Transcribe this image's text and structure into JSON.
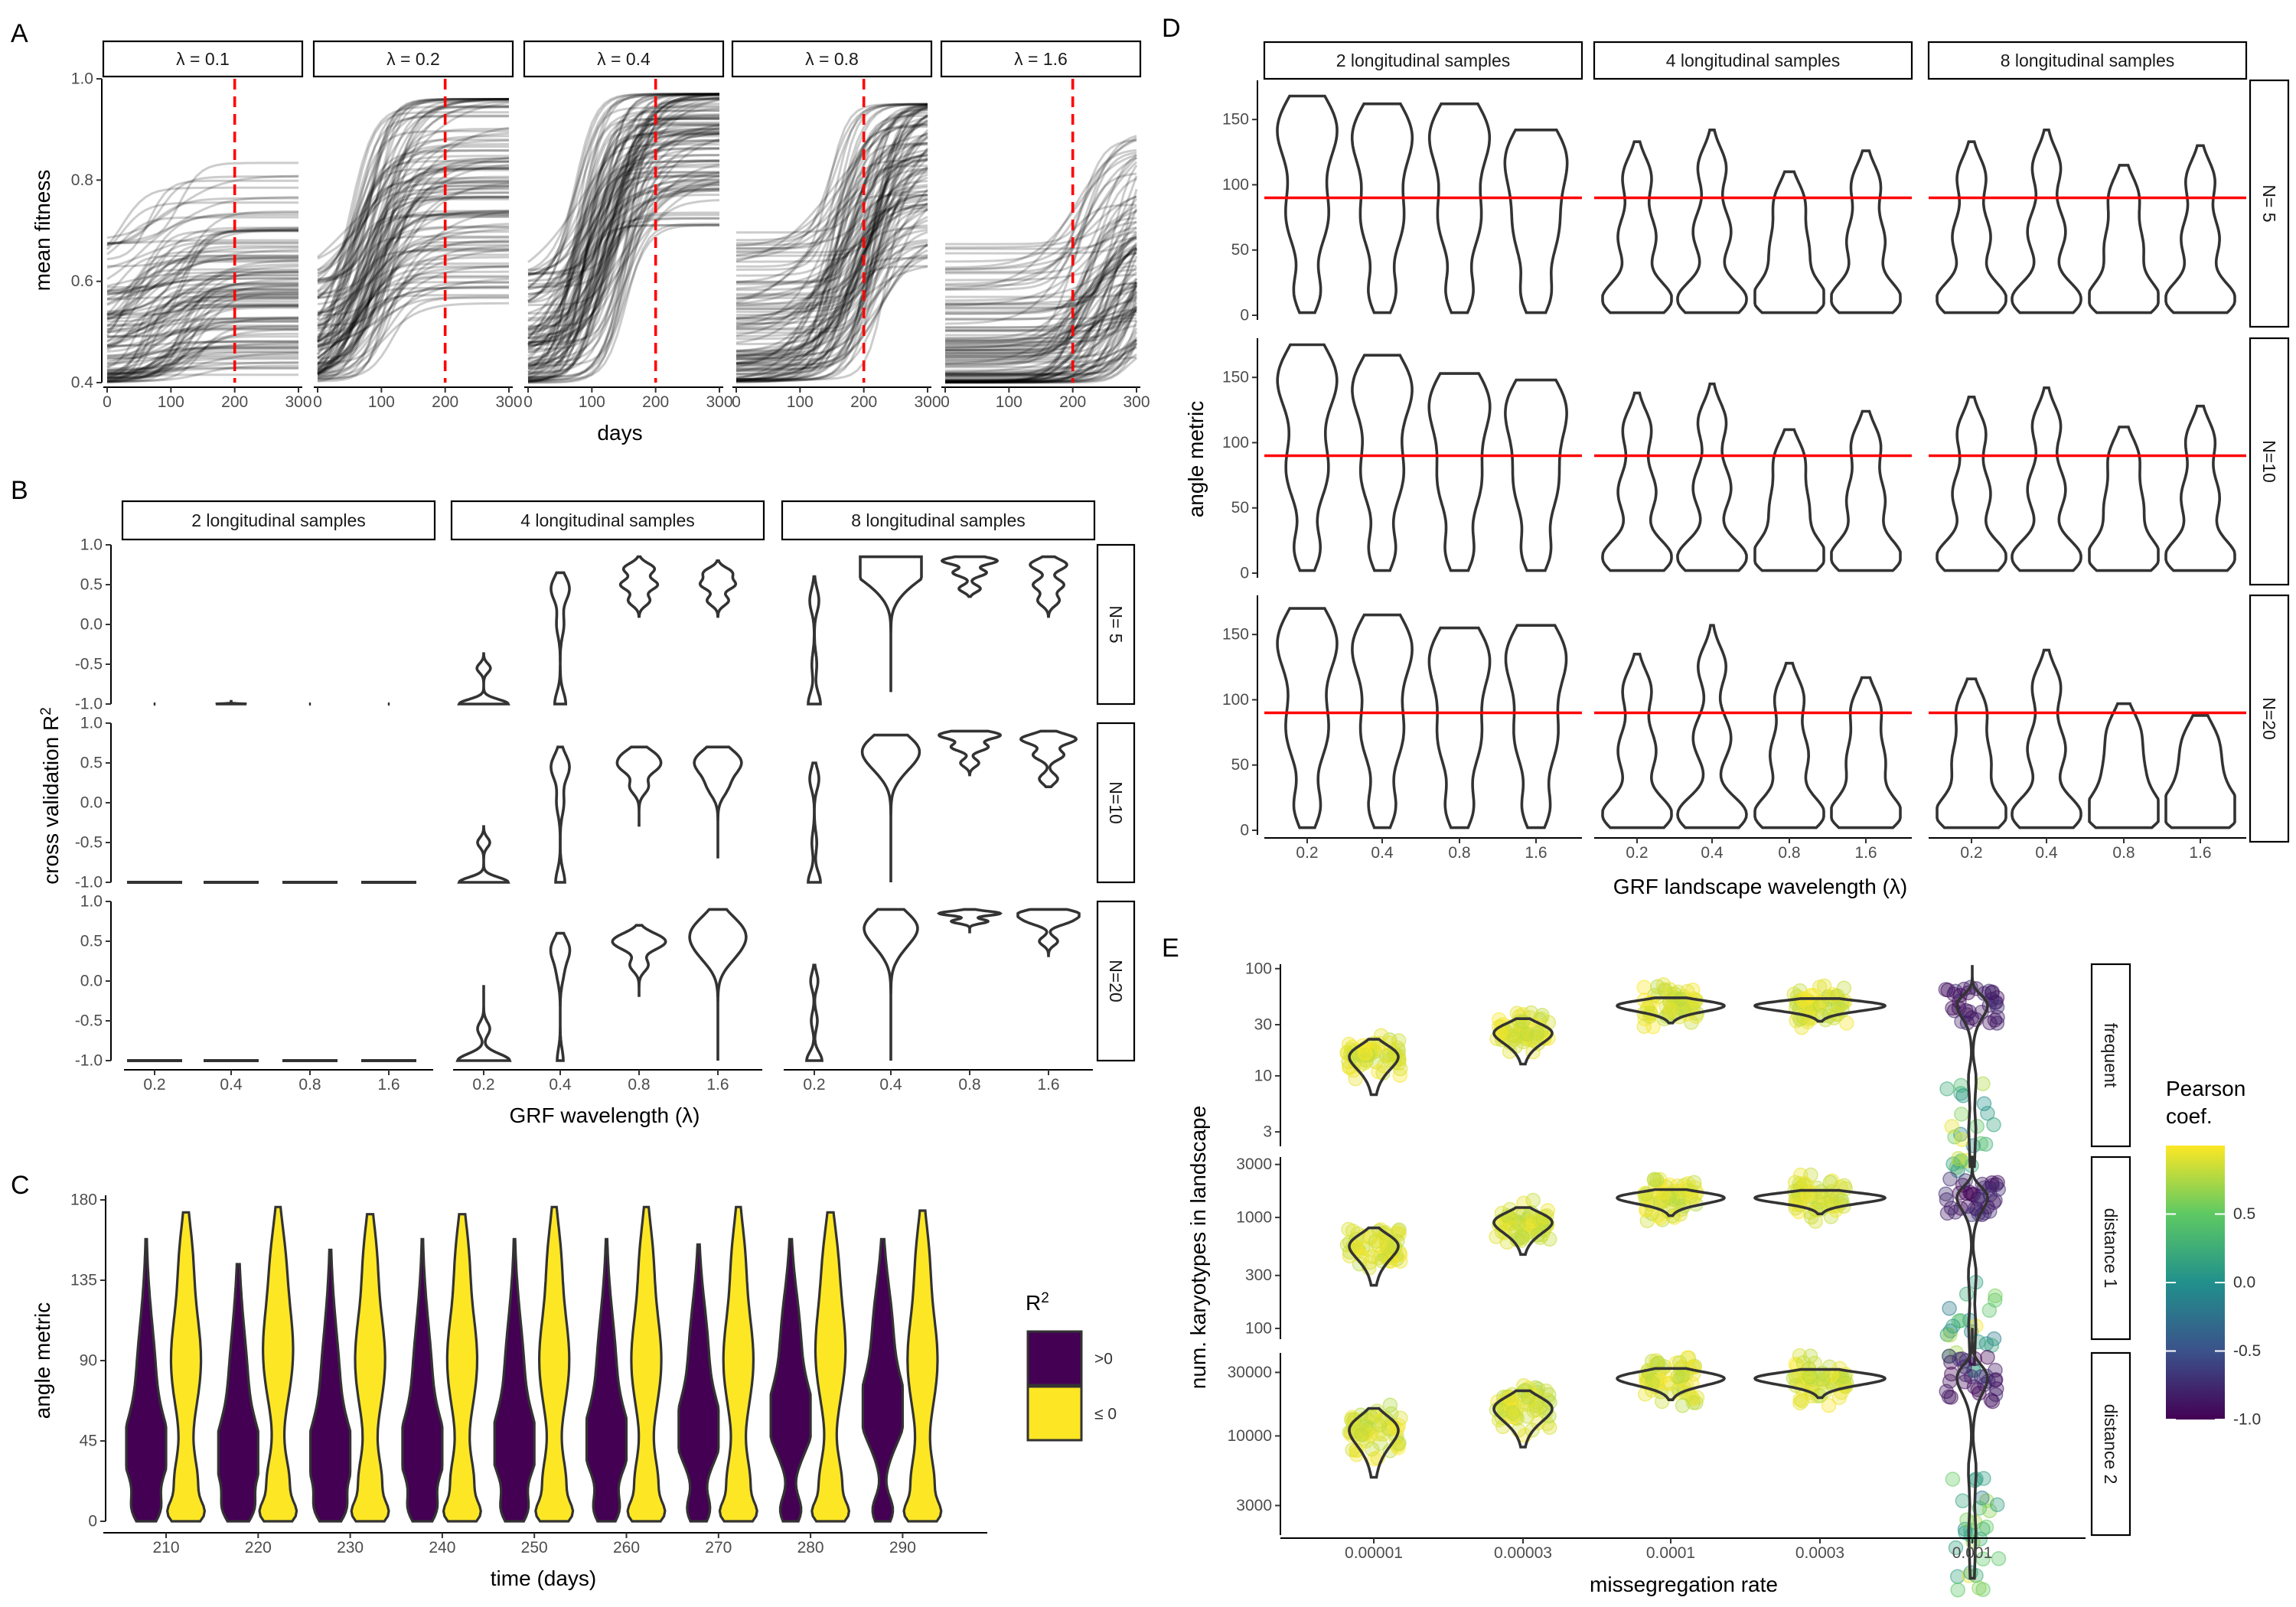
{
  "chart_data": [
    {
      "panel": "A",
      "type": "line",
      "xlabel": "days",
      "ylabel": "mean fitness",
      "xlim": [
        0,
        300
      ],
      "ylim": [
        0.4,
        1.0
      ],
      "x_ticks": [
        0,
        100,
        200,
        300
      ],
      "y_ticks": [
        0.4,
        0.6,
        0.8,
        1.0
      ],
      "y_tick_labels": [
        "0.4",
        "0.6",
        "0.8",
        "1.0"
      ],
      "reference_line_x": 200,
      "facets": [
        {
          "label": "λ = 0.1",
          "start_range": [
            0.4,
            0.69
          ],
          "plateau_gain": [
            0.0,
            0.2
          ],
          "rise_time": [
            20,
            150
          ],
          "max": 0.84
        },
        {
          "label": "λ = 0.2",
          "start_range": [
            0.4,
            0.62
          ],
          "plateau_gain": [
            0.15,
            0.5
          ],
          "rise_time": [
            40,
            120
          ],
          "max": 0.96
        },
        {
          "label": "λ = 0.4",
          "start_range": [
            0.4,
            0.63
          ],
          "plateau_gain": [
            0.3,
            0.55
          ],
          "rise_time": [
            70,
            160
          ],
          "max": 0.97
        },
        {
          "label": "λ = 0.8",
          "start_range": [
            0.4,
            0.7
          ],
          "plateau_gain": [
            0.2,
            0.55
          ],
          "rise_time": [
            140,
            240
          ],
          "max": 0.95
        },
        {
          "label": "λ = 1.6",
          "start_range": [
            0.4,
            0.68
          ],
          "plateau_gain": [
            0.05,
            0.35
          ],
          "rise_time": [
            200,
            320
          ],
          "max": 0.9
        }
      ]
    },
    {
      "panel": "B",
      "type": "violin",
      "xlabel": "GRF wavelength (λ)",
      "ylabel": "cross validation R²",
      "ylim": [
        -1.0,
        1.0
      ],
      "y_ticks": [
        -1.0,
        -0.5,
        0.0,
        0.5,
        1.0
      ],
      "y_tick_labels": [
        "-1.0",
        "-0.5",
        "0.0",
        "0.5",
        "1.0"
      ],
      "categories": [
        "0.2",
        "0.4",
        "0.8",
        "1.6"
      ],
      "col_facets": [
        "2 longitudinal samples",
        "4 longitudinal samples",
        "8 longitudinal samples"
      ],
      "row_facets": [
        "N= 5",
        "N=10",
        "N=20"
      ],
      "violins": [
        [
          [
            {
              "min": -1.0,
              "max": -1.0,
              "peaks": [
                [
                  -1.0,
                  0.03
                ]
              ]
            },
            {
              "min": -1.0,
              "max": -0.95,
              "peaks": [
                [
                  -1.0,
                  0.5
                ]
              ]
            },
            {
              "min": -1.0,
              "max": -1.0,
              "peaks": [
                [
                  -1.0,
                  0.03
                ]
              ]
            },
            {
              "min": -1.0,
              "max": -1.0,
              "peaks": [
                [
                  -1.0,
                  0.03
                ]
              ]
            }
          ],
          [
            {
              "min": -1.0,
              "max": -0.35,
              "peaks": [
                [
                  -1.0,
                  0.8
                ],
                [
                  -0.55,
                  0.22
                ]
              ]
            },
            {
              "min": -1.0,
              "max": 0.65,
              "peaks": [
                [
                  -1.0,
                  0.18
                ],
                [
                  0.0,
                  0.12
                ],
                [
                  0.45,
                  0.3
                ]
              ]
            },
            {
              "min": 0.1,
              "max": 0.85,
              "peaks": [
                [
                  0.3,
                  0.35
                ],
                [
                  0.5,
                  0.6
                ],
                [
                  0.7,
                  0.5
                ]
              ]
            },
            {
              "min": 0.1,
              "max": 0.8,
              "peaks": [
                [
                  0.3,
                  0.35
                ],
                [
                  0.5,
                  0.55
                ],
                [
                  0.65,
                  0.45
                ]
              ]
            }
          ],
          [
            {
              "min": -1.0,
              "max": 0.6,
              "peaks": [
                [
                  -1.0,
                  0.2
                ],
                [
                  -0.5,
                  0.08
                ],
                [
                  0.3,
                  0.15
                ]
              ]
            },
            {
              "min": -0.85,
              "max": 0.85,
              "peaks": [
                [
                  0.4,
                  0.2
                ],
                [
                  0.6,
                  0.5
                ],
                [
                  0.78,
                  1.0
                ]
              ]
            },
            {
              "min": 0.35,
              "max": 0.85,
              "peaks": [
                [
                  0.45,
                  0.35
                ],
                [
                  0.65,
                  0.55
                ],
                [
                  0.8,
                  0.9
                ]
              ]
            },
            {
              "min": 0.1,
              "max": 0.85,
              "peaks": [
                [
                  0.3,
                  0.35
                ],
                [
                  0.5,
                  0.5
                ],
                [
                  0.75,
                  0.6
                ]
              ]
            }
          ]
        ],
        [
          [
            {
              "min": -1.0,
              "max": -1.0,
              "peaks": [
                [
                  -1.0,
                  0.9
                ]
              ]
            },
            {
              "min": -1.0,
              "max": -1.0,
              "peaks": [
                [
                  -1.0,
                  0.9
                ]
              ]
            },
            {
              "min": -1.0,
              "max": -1.0,
              "peaks": [
                [
                  -1.0,
                  0.9
                ]
              ]
            },
            {
              "min": -1.0,
              "max": -1.0,
              "peaks": [
                [
                  -1.0,
                  0.9
                ]
              ]
            }
          ],
          [
            {
              "min": -1.0,
              "max": -0.3,
              "peaks": [
                [
                  -1.0,
                  0.8
                ],
                [
                  -0.5,
                  0.2
                ]
              ]
            },
            {
              "min": -1.0,
              "max": 0.7,
              "peaks": [
                [
                  -1.0,
                  0.15
                ],
                [
                  0.0,
                  0.12
                ],
                [
                  0.45,
                  0.3
                ]
              ]
            },
            {
              "min": -0.3,
              "max": 0.7,
              "peaks": [
                [
                  0.2,
                  0.3
                ],
                [
                  0.45,
                  0.55
                ],
                [
                  0.6,
                  0.45
                ]
              ]
            },
            {
              "min": -0.7,
              "max": 0.7,
              "peaks": [
                [
                  0.2,
                  0.3
                ],
                [
                  0.45,
                  0.5
                ],
                [
                  0.6,
                  0.4
                ]
              ]
            }
          ],
          [
            {
              "min": -1.0,
              "max": 0.5,
              "peaks": [
                [
                  -1.0,
                  0.2
                ],
                [
                  -0.5,
                  0.08
                ],
                [
                  0.3,
                  0.15
                ]
              ]
            },
            {
              "min": -1.0,
              "max": 0.85,
              "peaks": [
                [
                  0.4,
                  0.25
                ],
                [
                  0.6,
                  0.5
                ],
                [
                  0.75,
                  0.45
                ]
              ]
            },
            {
              "min": 0.35,
              "max": 0.9,
              "peaks": [
                [
                  0.5,
                  0.3
                ],
                [
                  0.7,
                  0.6
                ],
                [
                  0.85,
                  1.0
                ]
              ]
            },
            {
              "min": 0.2,
              "max": 0.9,
              "peaks": [
                [
                  0.3,
                  0.3
                ],
                [
                  0.6,
                  0.5
                ],
                [
                  0.8,
                  0.9
                ]
              ]
            }
          ]
        ],
        [
          [
            {
              "min": -1.0,
              "max": -1.0,
              "peaks": [
                [
                  -1.0,
                  0.9
                ]
              ]
            },
            {
              "min": -1.0,
              "max": -1.0,
              "peaks": [
                [
                  -1.0,
                  0.9
                ]
              ]
            },
            {
              "min": -1.0,
              "max": -1.0,
              "peaks": [
                [
                  -1.0,
                  0.9
                ]
              ]
            },
            {
              "min": -1.0,
              "max": -1.0,
              "peaks": [
                [
                  -1.0,
                  0.9
                ]
              ]
            }
          ],
          [
            {
              "min": -1.0,
              "max": -0.05,
              "peaks": [
                [
                  -1.0,
                  0.85
                ],
                [
                  -0.6,
                  0.2
                ]
              ]
            },
            {
              "min": -1.0,
              "max": 0.6,
              "peaks": [
                [
                  -1.0,
                  0.1
                ],
                [
                  0.1,
                  0.1
                ],
                [
                  0.4,
                  0.3
                ]
              ]
            },
            {
              "min": -0.2,
              "max": 0.7,
              "peaks": [
                [
                  0.2,
                  0.3
                ],
                [
                  0.45,
                  0.55
                ],
                [
                  0.55,
                  0.5
                ]
              ]
            },
            {
              "min": -1.0,
              "max": 0.9,
              "peaks": [
                [
                  0.3,
                  0.3
                ],
                [
                  0.5,
                  0.5
                ],
                [
                  0.7,
                  0.5
                ]
              ]
            }
          ],
          [
            {
              "min": -1.0,
              "max": 0.2,
              "peaks": [
                [
                  -1.0,
                  0.25
                ],
                [
                  -0.5,
                  0.1
                ],
                [
                  0.0,
                  0.12
                ]
              ]
            },
            {
              "min": -1.0,
              "max": 0.9,
              "peaks": [
                [
                  0.4,
                  0.2
                ],
                [
                  0.6,
                  0.4
                ],
                [
                  0.75,
                  0.5
                ]
              ]
            },
            {
              "min": 0.6,
              "max": 0.9,
              "peaks": [
                [
                  0.75,
                  0.6
                ],
                [
                  0.85,
                  1.0
                ]
              ]
            },
            {
              "min": 0.3,
              "max": 0.9,
              "peaks": [
                [
                  0.5,
                  0.3
                ],
                [
                  0.75,
                  0.6
                ],
                [
                  0.85,
                  0.9
                ]
              ]
            }
          ]
        ]
      ]
    },
    {
      "panel": "C",
      "type": "violin",
      "xlabel": "time (days)",
      "ylabel": "angle metric",
      "ylim": [
        0,
        180
      ],
      "y_ticks": [
        0,
        45,
        90,
        135,
        180
      ],
      "y_tick_labels": [
        "0",
        "45",
        "90",
        "135",
        "180"
      ],
      "categories": [
        "210",
        "220",
        "230",
        "240",
        "250",
        "260",
        "270",
        "280",
        "290"
      ],
      "legend": {
        "title": "R²",
        "entries": [
          {
            "label": ">0",
            "color": "#440154"
          },
          {
            "label": "≤ 0",
            "color": "#FDE725"
          }
        ]
      },
      "series": [
        {
          "name": ">0",
          "color": "#440154",
          "max": [
            158,
            144,
            152,
            158,
            158,
            158,
            155,
            158,
            158
          ],
          "mode": [
            38,
            35,
            35,
            38,
            40,
            42,
            48,
            55,
            60
          ]
        },
        {
          "name": "≤ 0",
          "color": "#FDE725",
          "max": [
            173,
            176,
            172,
            172,
            176,
            176,
            176,
            173,
            174
          ],
          "mode": [
            90,
            95,
            90,
            90,
            90,
            90,
            90,
            95,
            90
          ]
        }
      ]
    },
    {
      "panel": "D",
      "type": "violin",
      "xlabel": "GRF landscape wavelength (λ)",
      "ylabel": "angle metric",
      "ylim": [
        0,
        180
      ],
      "y_ticks": [
        0,
        50,
        100,
        150
      ],
      "y_tick_labels": [
        "0",
        "50",
        "100",
        "150"
      ],
      "reference_line_y": 90,
      "categories": [
        "0.2",
        "0.4",
        "0.8",
        "1.6"
      ],
      "col_facets": [
        "2 longitudinal samples",
        "4 longitudinal samples",
        "8 longitudinal samples"
      ],
      "row_facets": [
        "N= 5",
        "N=10",
        "N=20"
      ],
      "violin_max": [
        [
          [
            168,
            162,
            162,
            142
          ],
          [
            133,
            142,
            110,
            126
          ],
          [
            133,
            142,
            115,
            130
          ]
        ],
        [
          [
            175,
            167,
            153,
            148
          ],
          [
            138,
            145,
            110,
            124
          ],
          [
            135,
            142,
            112,
            128
          ]
        ],
        [
          [
            170,
            165,
            155,
            157
          ],
          [
            135,
            157,
            128,
            117
          ],
          [
            116,
            138,
            97,
            88
          ]
        ]
      ]
    },
    {
      "panel": "E",
      "type": "violin",
      "xlabel": "missegregation rate",
      "ylabel": "num. karyotypes in landscape",
      "categories": [
        "0.00001",
        "0.00003",
        "0.0001",
        "0.0003",
        "0.001"
      ],
      "row_facets": [
        {
          "label": "frequent",
          "scale": "log",
          "ylim": [
            2.2,
            110
          ],
          "y_ticks": [
            3,
            10,
            30,
            100
          ],
          "y_tick_labels": [
            "3",
            "10",
            "30",
            "100"
          ],
          "centers": [
            15,
            25,
            45,
            45,
            45
          ]
        },
        {
          "label": "distance 1",
          "scale": "log",
          "ylim": [
            80,
            3500
          ],
          "y_ticks": [
            100,
            300,
            1000,
            3000
          ],
          "y_tick_labels": [
            "100",
            "300",
            "1000",
            "3000"
          ],
          "centers": [
            550,
            900,
            1500,
            1500,
            1500
          ]
        },
        {
          "label": "distance 2",
          "scale": "log",
          "ylim": [
            1800,
            42000
          ],
          "y_ticks": [
            3000,
            10000,
            30000
          ],
          "y_tick_labels": [
            "3000",
            "10000",
            "30000"
          ],
          "centers": [
            11000,
            16000,
            27000,
            27000,
            27000
          ]
        }
      ],
      "legend": {
        "title": "Pearson coef.",
        "range": [
          -1.0,
          1.0
        ],
        "ticks": [
          -1.0,
          -0.5,
          0.0,
          0.5
        ],
        "tick_labels": [
          "-1.0",
          "-0.5",
          "0.0",
          "0.5"
        ],
        "palette": "viridis"
      }
    }
  ]
}
